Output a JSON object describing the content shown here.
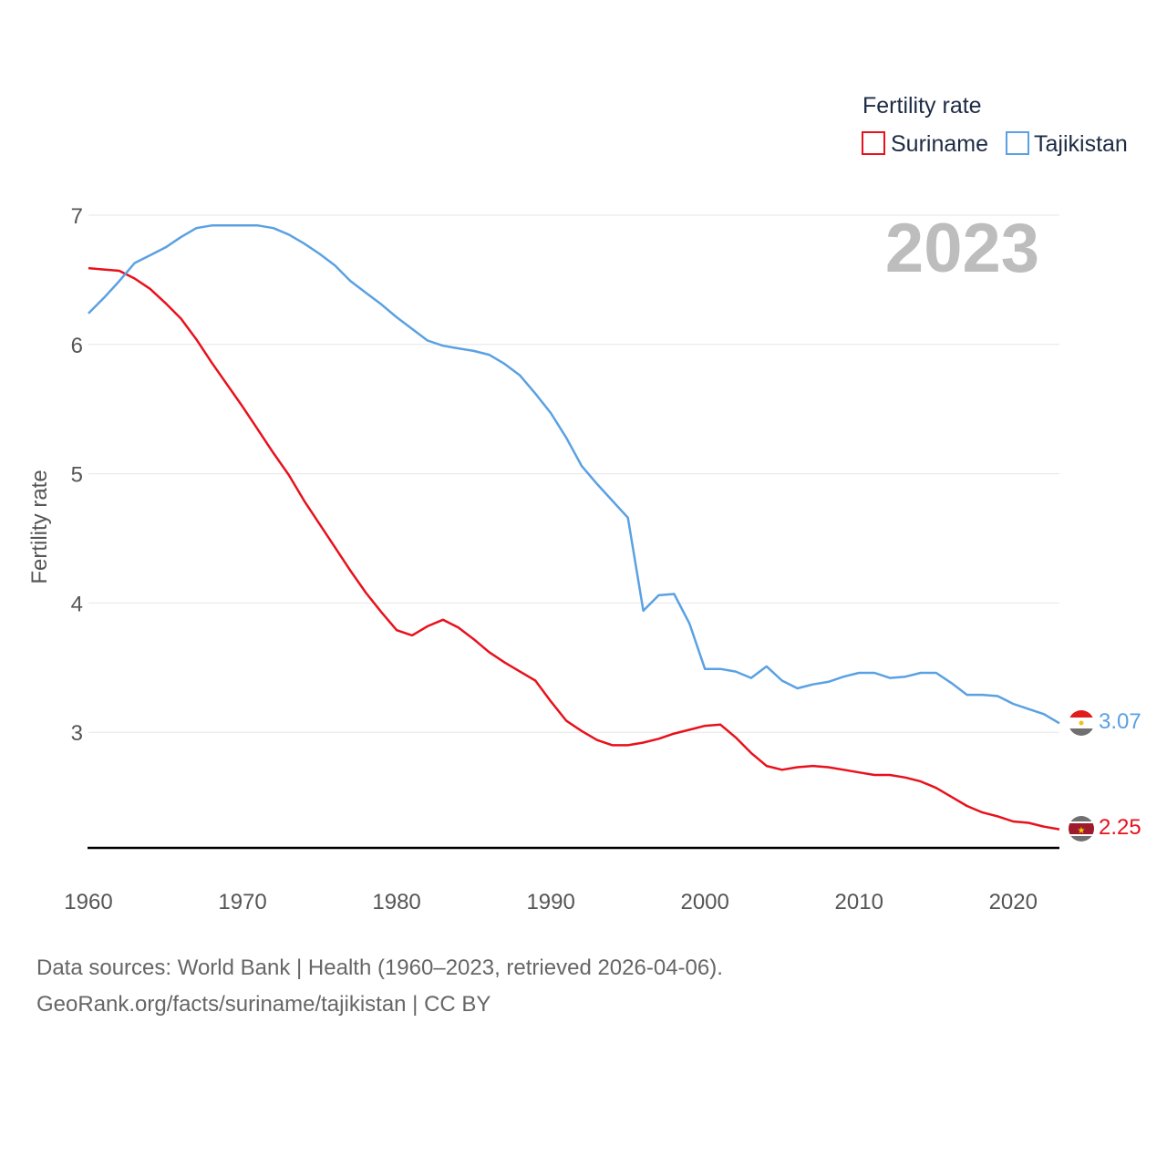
{
  "chart_data": {
    "type": "line",
    "title": "Fertility rate",
    "xlabel": "",
    "ylabel": "Fertility rate",
    "current_year": "2023",
    "xlim": [
      1960,
      2023
    ],
    "ylim": [
      2.1,
      7.0
    ],
    "yticks": [
      3,
      4,
      5,
      6,
      7
    ],
    "xticks": [
      1960,
      1970,
      1980,
      1990,
      2000,
      2010,
      2020
    ],
    "x": [
      1960,
      1961,
      1962,
      1963,
      1964,
      1965,
      1966,
      1967,
      1968,
      1969,
      1970,
      1971,
      1972,
      1973,
      1974,
      1975,
      1976,
      1977,
      1978,
      1979,
      1980,
      1981,
      1982,
      1983,
      1984,
      1985,
      1986,
      1987,
      1988,
      1989,
      1990,
      1991,
      1992,
      1993,
      1994,
      1995,
      1996,
      1997,
      1998,
      1999,
      2000,
      2001,
      2002,
      2003,
      2004,
      2005,
      2006,
      2007,
      2008,
      2009,
      2010,
      2011,
      2012,
      2013,
      2014,
      2015,
      2016,
      2017,
      2018,
      2019,
      2020,
      2021,
      2022,
      2023
    ],
    "series": [
      {
        "name": "Suriname",
        "color": "#e8111c",
        "end_label": "2.25",
        "values": [
          6.59,
          6.58,
          6.57,
          6.51,
          6.43,
          6.32,
          6.2,
          6.04,
          5.86,
          5.69,
          5.52,
          5.34,
          5.16,
          4.99,
          4.79,
          4.61,
          4.43,
          4.25,
          4.08,
          3.93,
          3.79,
          3.75,
          3.82,
          3.87,
          3.81,
          3.72,
          3.62,
          3.54,
          3.47,
          3.4,
          3.24,
          3.09,
          3.01,
          2.94,
          2.9,
          2.9,
          2.92,
          2.95,
          2.99,
          3.02,
          3.05,
          3.06,
          2.96,
          2.84,
          2.74,
          2.71,
          2.73,
          2.74,
          2.73,
          2.71,
          2.69,
          2.67,
          2.67,
          2.65,
          2.62,
          2.57,
          2.5,
          2.43,
          2.38,
          2.35,
          2.31,
          2.3,
          2.27,
          2.25
        ]
      },
      {
        "name": "Tajikistan",
        "color": "#5aa1e3",
        "end_label": "3.07",
        "values": [
          6.24,
          6.36,
          6.49,
          6.63,
          6.69,
          6.75,
          6.83,
          6.9,
          6.92,
          6.92,
          6.92,
          6.92,
          6.9,
          6.85,
          6.78,
          6.7,
          6.61,
          6.49,
          6.4,
          6.31,
          6.21,
          6.12,
          6.03,
          5.99,
          5.97,
          5.95,
          5.92,
          5.85,
          5.76,
          5.62,
          5.47,
          5.28,
          5.06,
          4.92,
          4.79,
          4.66,
          3.94,
          4.06,
          4.07,
          3.84,
          3.49,
          3.49,
          3.47,
          3.42,
          3.51,
          3.4,
          3.34,
          3.37,
          3.39,
          3.43,
          3.46,
          3.46,
          3.42,
          3.43,
          3.46,
          3.46,
          3.38,
          3.29,
          3.29,
          3.28,
          3.22,
          3.18,
          3.14,
          3.07
        ]
      }
    ]
  },
  "footer": {
    "line1": "Data sources: World Bank | Health (1960–2023, retrieved 2026-04-06).",
    "line2": "GeoRank.org/facts/suriname/tajikistan | CC BY"
  }
}
